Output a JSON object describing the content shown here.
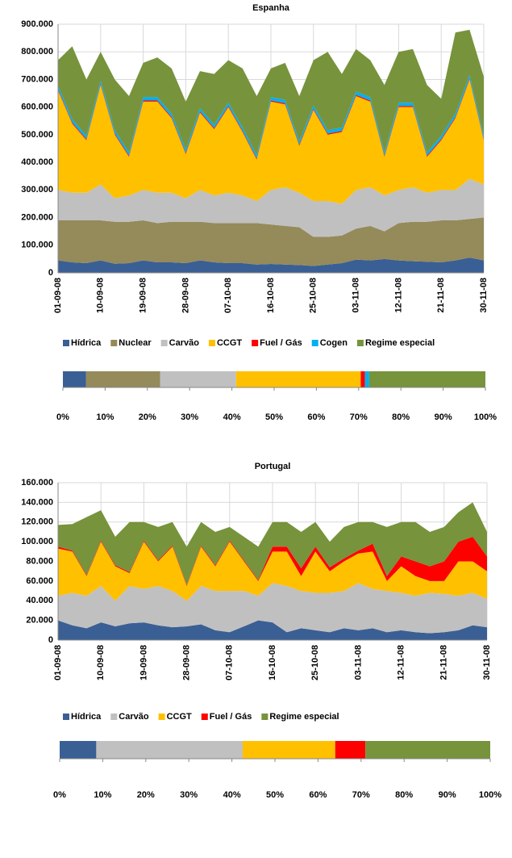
{
  "chart_data": [
    {
      "type": "area",
      "title": "Espanha",
      "categories": [
        "01-09-08",
        null,
        null,
        "10-09-08",
        null,
        null,
        "19-09-08",
        null,
        null,
        "28-09-08",
        null,
        null,
        "07-10-08",
        null,
        null,
        "16-10-08",
        null,
        null,
        "25-10-08",
        null,
        null,
        "03-11-08",
        null,
        null,
        "12-11-08",
        null,
        null,
        "21-11-08",
        null,
        null,
        "30-11-08"
      ],
      "ylim": [
        0,
        900000
      ],
      "yticks": [
        {
          "value": 0,
          "label": "0"
        },
        {
          "value": 100000,
          "label": "100.000"
        },
        {
          "value": 200000,
          "label": "200.000"
        },
        {
          "value": 300000,
          "label": "300.000"
        },
        {
          "value": 400000,
          "label": "400.000"
        },
        {
          "value": 500000,
          "label": "500.000"
        },
        {
          "value": 600000,
          "label": "600.000"
        },
        {
          "value": 700000,
          "label": "700.000"
        },
        {
          "value": 800000,
          "label": "800.000"
        },
        {
          "value": 900000,
          "label": "900.000"
        }
      ],
      "grid": true,
      "series": [
        {
          "name": "Hídrica",
          "color": "#3a5f94",
          "values": [
            45000,
            38000,
            35000,
            45000,
            33000,
            35000,
            45000,
            38000,
            38000,
            35000,
            45000,
            38000,
            35000,
            35000,
            30000,
            32000,
            30000,
            28000,
            25000,
            30000,
            35000,
            48000,
            45000,
            50000,
            45000,
            42000,
            40000,
            38000,
            45000,
            55000,
            45000
          ]
        },
        {
          "name": "Nuclear",
          "color": "#958a5a",
          "values": [
            145000,
            152000,
            155000,
            145000,
            152000,
            150000,
            145000,
            142000,
            147000,
            150000,
            140000,
            142000,
            145000,
            145000,
            150000,
            143000,
            140000,
            137000,
            105000,
            100000,
            100000,
            112000,
            125000,
            100000,
            135000,
            143000,
            145000,
            152000,
            145000,
            140000,
            155000
          ]
        },
        {
          "name": "Carvão",
          "color": "#c0c0c0",
          "values": [
            110000,
            100000,
            100000,
            130000,
            85000,
            95000,
            110000,
            110000,
            105000,
            85000,
            115000,
            100000,
            110000,
            100000,
            80000,
            125000,
            140000,
            125000,
            130000,
            130000,
            115000,
            140000,
            140000,
            130000,
            120000,
            125000,
            105000,
            110000,
            110000,
            145000,
            120000
          ]
        },
        {
          "name": "CCGT",
          "color": "#ffc000",
          "values": [
            360000,
            250000,
            190000,
            360000,
            230000,
            140000,
            320000,
            330000,
            270000,
            160000,
            280000,
            240000,
            310000,
            230000,
            150000,
            320000,
            300000,
            170000,
            330000,
            240000,
            260000,
            340000,
            310000,
            140000,
            300000,
            290000,
            130000,
            180000,
            260000,
            360000,
            160000
          ]
        },
        {
          "name": "Fuel / Gás",
          "color": "#ff0000",
          "values": [
            4000,
            4000,
            4000,
            4000,
            4000,
            4000,
            4000,
            4000,
            4000,
            4000,
            4000,
            4000,
            4000,
            4000,
            4000,
            4000,
            4000,
            4000,
            4000,
            4000,
            4000,
            4000,
            4000,
            4000,
            4000,
            4000,
            4000,
            4000,
            4000,
            4000,
            4000
          ]
        },
        {
          "name": "Cogen",
          "color": "#00b0f0",
          "values": [
            12000,
            12000,
            12000,
            12000,
            12000,
            12000,
            12000,
            12000,
            12000,
            12000,
            12000,
            12000,
            12000,
            12000,
            12000,
            12000,
            12000,
            12000,
            12000,
            12000,
            12000,
            12000,
            12000,
            12000,
            12000,
            12000,
            12000,
            12000,
            12000,
            12000,
            12000
          ]
        },
        {
          "name": "Regime especial",
          "color": "#77933c",
          "values": [
            94000,
            264000,
            204000,
            104000,
            184000,
            204000,
            124000,
            144000,
            164000,
            174000,
            134000,
            184000,
            154000,
            214000,
            214000,
            104000,
            134000,
            164000,
            164000,
            284000,
            194000,
            154000,
            134000,
            244000,
            184000,
            194000,
            244000,
            134000,
            294000,
            164000,
            214000
          ]
        }
      ]
    },
    {
      "type": "stacked_bar_100",
      "values": [
        5.5,
        17.5,
        18,
        29.5,
        1,
        1,
        27.5
      ],
      "colors": [
        "#3a5f94",
        "#958a5a",
        "#c0c0c0",
        "#ffc000",
        "#ff0000",
        "#00b0f0",
        "#77933c"
      ],
      "xlim": [
        0,
        100
      ],
      "xticks": [
        {
          "value": 0,
          "label": "0%"
        },
        {
          "value": 10,
          "label": "10%"
        },
        {
          "value": 20,
          "label": "20%"
        },
        {
          "value": 30,
          "label": "30%"
        },
        {
          "value": 40,
          "label": "40%"
        },
        {
          "value": 50,
          "label": "50%"
        },
        {
          "value": 60,
          "label": "60%"
        },
        {
          "value": 70,
          "label": "70%"
        },
        {
          "value": 80,
          "label": "80%"
        },
        {
          "value": 90,
          "label": "90%"
        },
        {
          "value": 100,
          "label": "100%"
        }
      ]
    },
    {
      "type": "area",
      "title": "Portugal",
      "categories": [
        "01-09-08",
        null,
        null,
        "10-09-08",
        null,
        null,
        "19-09-08",
        null,
        null,
        "28-09-08",
        null,
        null,
        "07-10-08",
        null,
        null,
        "16-10-08",
        null,
        null,
        "25-10-08",
        null,
        null,
        "03-11-08",
        null,
        null,
        "12-11-08",
        null,
        null,
        "21-11-08",
        null,
        null,
        "30-11-08"
      ],
      "ylim": [
        0,
        160000
      ],
      "yticks": [
        {
          "value": 0,
          "label": "0"
        },
        {
          "value": 20000,
          "label": "20.000"
        },
        {
          "value": 40000,
          "label": "40.000"
        },
        {
          "value": 60000,
          "label": "60.000"
        },
        {
          "value": 80000,
          "label": "80.000"
        },
        {
          "value": 100000,
          "label": "100.000"
        },
        {
          "value": 120000,
          "label": "120.000"
        },
        {
          "value": 140000,
          "label": "140.000"
        },
        {
          "value": 160000,
          "label": "160.000"
        }
      ],
      "grid": true,
      "series": [
        {
          "name": "Hídrica",
          "color": "#3a5f94",
          "values": [
            20000,
            15000,
            12000,
            18000,
            14000,
            17000,
            18000,
            15000,
            13000,
            14000,
            16000,
            10000,
            8000,
            14000,
            20000,
            18000,
            8000,
            12000,
            10000,
            8000,
            12000,
            10000,
            12000,
            8000,
            10000,
            8000,
            7000,
            8000,
            10000,
            15000,
            13000
          ]
        },
        {
          "name": "Carvão",
          "color": "#c0c0c0",
          "values": [
            25000,
            33000,
            33000,
            37000,
            26000,
            38000,
            34000,
            40000,
            37000,
            26000,
            39000,
            40000,
            42000,
            36000,
            25000,
            40000,
            47000,
            38000,
            38000,
            40000,
            38000,
            48000,
            40000,
            42000,
            38000,
            37000,
            41000,
            39000,
            35000,
            33000,
            29000
          ]
        },
        {
          "name": "CCGT",
          "color": "#ffc000",
          "values": [
            48000,
            42000,
            20000,
            45000,
            35000,
            13000,
            48000,
            25000,
            45000,
            15000,
            40000,
            25000,
            50000,
            30000,
            15000,
            32000,
            35000,
            15000,
            42000,
            22000,
            30000,
            30000,
            38000,
            10000,
            27000,
            20000,
            12000,
            13000,
            35000,
            32000,
            28000
          ]
        },
        {
          "name": "Fuel / Gás",
          "color": "#ff0000",
          "values": [
            2000,
            1000,
            1000,
            1000,
            1000,
            1000,
            1000,
            1000,
            1000,
            1000,
            1000,
            1000,
            1000,
            1000,
            1000,
            5000,
            5000,
            8000,
            5000,
            4000,
            3000,
            3000,
            8000,
            5000,
            10000,
            15000,
            15000,
            20000,
            20000,
            25000,
            15000
          ]
        },
        {
          "name": "Regime especial",
          "color": "#77933c",
          "values": [
            22000,
            27000,
            59000,
            31000,
            29000,
            51000,
            19000,
            34000,
            24000,
            39000,
            24000,
            34000,
            14000,
            24000,
            34000,
            25000,
            25000,
            37000,
            25000,
            26000,
            32000,
            29000,
            22000,
            50000,
            35000,
            40000,
            35000,
            35000,
            30000,
            35000,
            25000
          ]
        }
      ]
    },
    {
      "type": "stacked_bar_100",
      "values": [
        8.5,
        34,
        21.5,
        7,
        29
      ],
      "colors": [
        "#3a5f94",
        "#c0c0c0",
        "#ffc000",
        "#ff0000",
        "#77933c"
      ],
      "xlim": [
        0,
        100
      ],
      "xticks": [
        {
          "value": 0,
          "label": "0%"
        },
        {
          "value": 10,
          "label": "10%"
        },
        {
          "value": 20,
          "label": "20%"
        },
        {
          "value": 30,
          "label": "30%"
        },
        {
          "value": 40,
          "label": "40%"
        },
        {
          "value": 50,
          "label": "50%"
        },
        {
          "value": 60,
          "label": "60%"
        },
        {
          "value": 70,
          "label": "70%"
        },
        {
          "value": 80,
          "label": "80%"
        },
        {
          "value": 90,
          "label": "90%"
        },
        {
          "value": 100,
          "label": "100%"
        }
      ]
    }
  ]
}
